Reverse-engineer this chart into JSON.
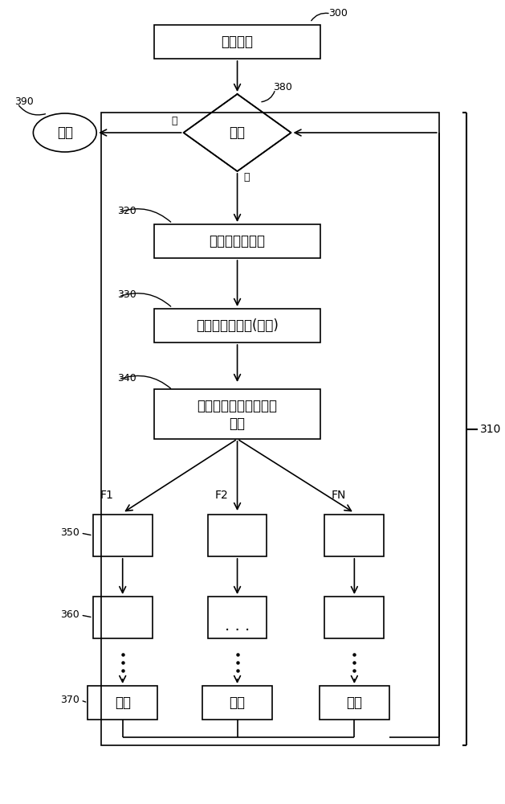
{
  "bg_color": "#ffffff",
  "text_color": "#000000",
  "font_size": 12,
  "small_font": 9,
  "label_300": "300",
  "box_300_text": "检测例程",
  "diamond_380_text": "继续",
  "label_380": "380",
  "label_390": "390",
  "oval_390_text": "返回",
  "no_label": "否",
  "yes_label": "是",
  "box_320_text": "加载寄存器内容",
  "label_320": "320",
  "box_330_text": "处理寄存器内容(任选)",
  "label_330": "330",
  "box_340_line1": "基于寄存器内容而义出",
  "box_340_line2": "分支",
  "label_340": "340",
  "label_310": "310",
  "branch_labels": [
    "F1",
    "F2",
    "FN"
  ],
  "label_350": "350",
  "label_360": "360",
  "label_370": "370",
  "jump_text": "跳转"
}
